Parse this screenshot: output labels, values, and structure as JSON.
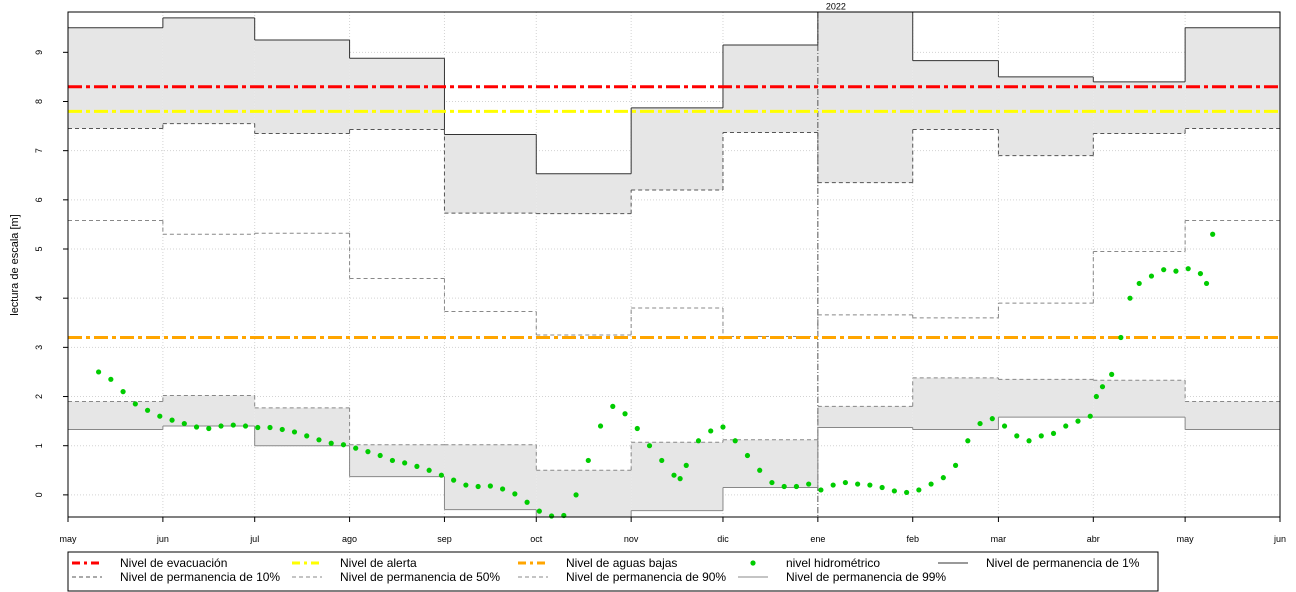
{
  "chart_data": {
    "type": "line",
    "y_label": "lectura de escala [m]",
    "annotation": {
      "text": "2022",
      "x": 245
    },
    "xlim": [
      0,
      396
    ],
    "xticks": [
      {
        "value": 0,
        "label": "may"
      },
      {
        "value": 31,
        "label": "jun"
      },
      {
        "value": 61,
        "label": "jul"
      },
      {
        "value": 92,
        "label": "ago"
      },
      {
        "value": 123,
        "label": "sep"
      },
      {
        "value": 153,
        "label": "oct"
      },
      {
        "value": 184,
        "label": "nov"
      },
      {
        "value": 214,
        "label": "dic"
      },
      {
        "value": 245,
        "label": "ene"
      },
      {
        "value": 276,
        "label": "feb"
      },
      {
        "value": 304,
        "label": "mar"
      },
      {
        "value": 335,
        "label": "abr"
      },
      {
        "value": 365,
        "label": "may"
      },
      {
        "value": 396,
        "label": "jun"
      }
    ],
    "ylim": [
      -0.45,
      9.82
    ],
    "yticks": [
      0,
      1,
      2,
      3,
      4,
      5,
      6,
      7,
      8,
      9
    ],
    "grid": true,
    "shading": {
      "color": "#e6e6e6",
      "pairs": [
        [
          4,
          5
        ],
        [
          7,
          8
        ]
      ]
    },
    "series": [
      {
        "name": "Nivel de evacuación",
        "style": "hline",
        "color": "#ff0000",
        "values": [
          8.3
        ]
      },
      {
        "name": "Nivel de alerta",
        "style": "hline",
        "color": "#ffff00",
        "values": [
          7.8
        ]
      },
      {
        "name": "Nivel de aguas bajas",
        "style": "hline",
        "color": "#ffa500",
        "values": [
          3.2
        ]
      },
      {
        "name": "nivel hidrométrico",
        "style": "points",
        "color": "#00cc00",
        "x": [
          10,
          14,
          18,
          22,
          26,
          30,
          34,
          38,
          42,
          46,
          50,
          54,
          58,
          62,
          66,
          70,
          74,
          78,
          82,
          86,
          90,
          94,
          98,
          102,
          106,
          110,
          114,
          118,
          122,
          126,
          130,
          134,
          138,
          142,
          146,
          150,
          154,
          158,
          162,
          166,
          170,
          174,
          178,
          182,
          186,
          190,
          194,
          198,
          200,
          202,
          206,
          210,
          214,
          218,
          222,
          226,
          230,
          234,
          238,
          242,
          246,
          250,
          254,
          258,
          262,
          266,
          270,
          274,
          278,
          282,
          286,
          290,
          294,
          298,
          302,
          306,
          310,
          314,
          318,
          322,
          326,
          330,
          334,
          336,
          338,
          341,
          344,
          347,
          350,
          354,
          358,
          362,
          366,
          370,
          372,
          374
        ],
        "values": [
          2.5,
          2.35,
          2.1,
          1.85,
          1.72,
          1.6,
          1.52,
          1.45,
          1.38,
          1.35,
          1.4,
          1.42,
          1.4,
          1.37,
          1.37,
          1.33,
          1.28,
          1.2,
          1.12,
          1.05,
          1.02,
          0.95,
          0.88,
          0.8,
          0.7,
          0.65,
          0.58,
          0.5,
          0.4,
          0.3,
          0.2,
          0.17,
          0.18,
          0.12,
          0.02,
          -0.15,
          -0.33,
          -0.43,
          -0.42,
          0.0,
          0.7,
          1.4,
          1.8,
          1.65,
          1.35,
          1.0,
          0.7,
          0.4,
          0.33,
          0.6,
          1.1,
          1.3,
          1.38,
          1.1,
          0.8,
          0.5,
          0.25,
          0.17,
          0.17,
          0.22,
          0.1,
          0.2,
          0.25,
          0.22,
          0.2,
          0.15,
          0.08,
          0.05,
          0.1,
          0.22,
          0.35,
          0.6,
          1.1,
          1.45,
          1.55,
          1.4,
          1.2,
          1.1,
          1.2,
          1.25,
          1.4,
          1.5,
          1.6,
          2.0,
          2.2,
          2.45,
          3.2,
          4.0,
          4.3,
          4.45,
          4.58,
          4.55,
          4.6,
          4.5,
          4.3,
          5.3
        ]
      },
      {
        "name": "Nivel de permanencia de 1%",
        "style": "step",
        "dash": "",
        "color": "#333333",
        "x": [
          0,
          31,
          61,
          92,
          123,
          153,
          184,
          214,
          245,
          276,
          304,
          335,
          365
        ],
        "values": [
          9.5,
          9.7,
          9.25,
          8.88,
          7.33,
          6.53,
          7.87,
          9.15,
          9.82,
          8.83,
          8.5,
          8.4,
          9.5
        ]
      },
      {
        "name": "Nivel de permanencia de 10%",
        "style": "step",
        "dash": "4 3",
        "color": "#555555",
        "x": [
          0,
          31,
          61,
          92,
          123,
          153,
          184,
          214,
          245,
          276,
          304,
          335,
          365
        ],
        "values": [
          7.45,
          7.55,
          7.35,
          7.43,
          5.73,
          5.72,
          6.2,
          7.37,
          6.35,
          7.43,
          6.9,
          7.35,
          7.45
        ]
      },
      {
        "name": "Nivel de permanencia de 50%",
        "style": "step",
        "dash": "4 3",
        "color": "#888888",
        "x": [
          0,
          31,
          61,
          92,
          123,
          153,
          184,
          214,
          245,
          276,
          304,
          335,
          365
        ],
        "values": [
          5.58,
          5.3,
          5.32,
          4.4,
          3.73,
          3.25,
          3.8,
          3.22,
          3.66,
          3.6,
          3.9,
          4.95,
          5.58
        ]
      },
      {
        "name": "Nivel de permanencia de 90%",
        "style": "step",
        "dash": "4 3",
        "color": "#888888",
        "x": [
          0,
          31,
          61,
          92,
          123,
          153,
          184,
          214,
          245,
          276,
          304,
          335,
          365
        ],
        "values": [
          1.9,
          2.02,
          1.77,
          1.02,
          1.02,
          0.5,
          1.07,
          1.12,
          1.8,
          2.38,
          2.35,
          2.33,
          1.9
        ]
      },
      {
        "name": "Nivel de permanencia de 99%",
        "style": "step",
        "dash": "",
        "color": "#888888",
        "x": [
          0,
          31,
          61,
          92,
          123,
          153,
          184,
          214,
          245,
          276,
          304,
          335,
          365
        ],
        "values": [
          1.33,
          1.4,
          1.0,
          0.37,
          -0.3,
          -0.45,
          -0.32,
          0.15,
          1.37,
          1.33,
          1.58,
          1.58,
          1.33
        ]
      }
    ]
  }
}
